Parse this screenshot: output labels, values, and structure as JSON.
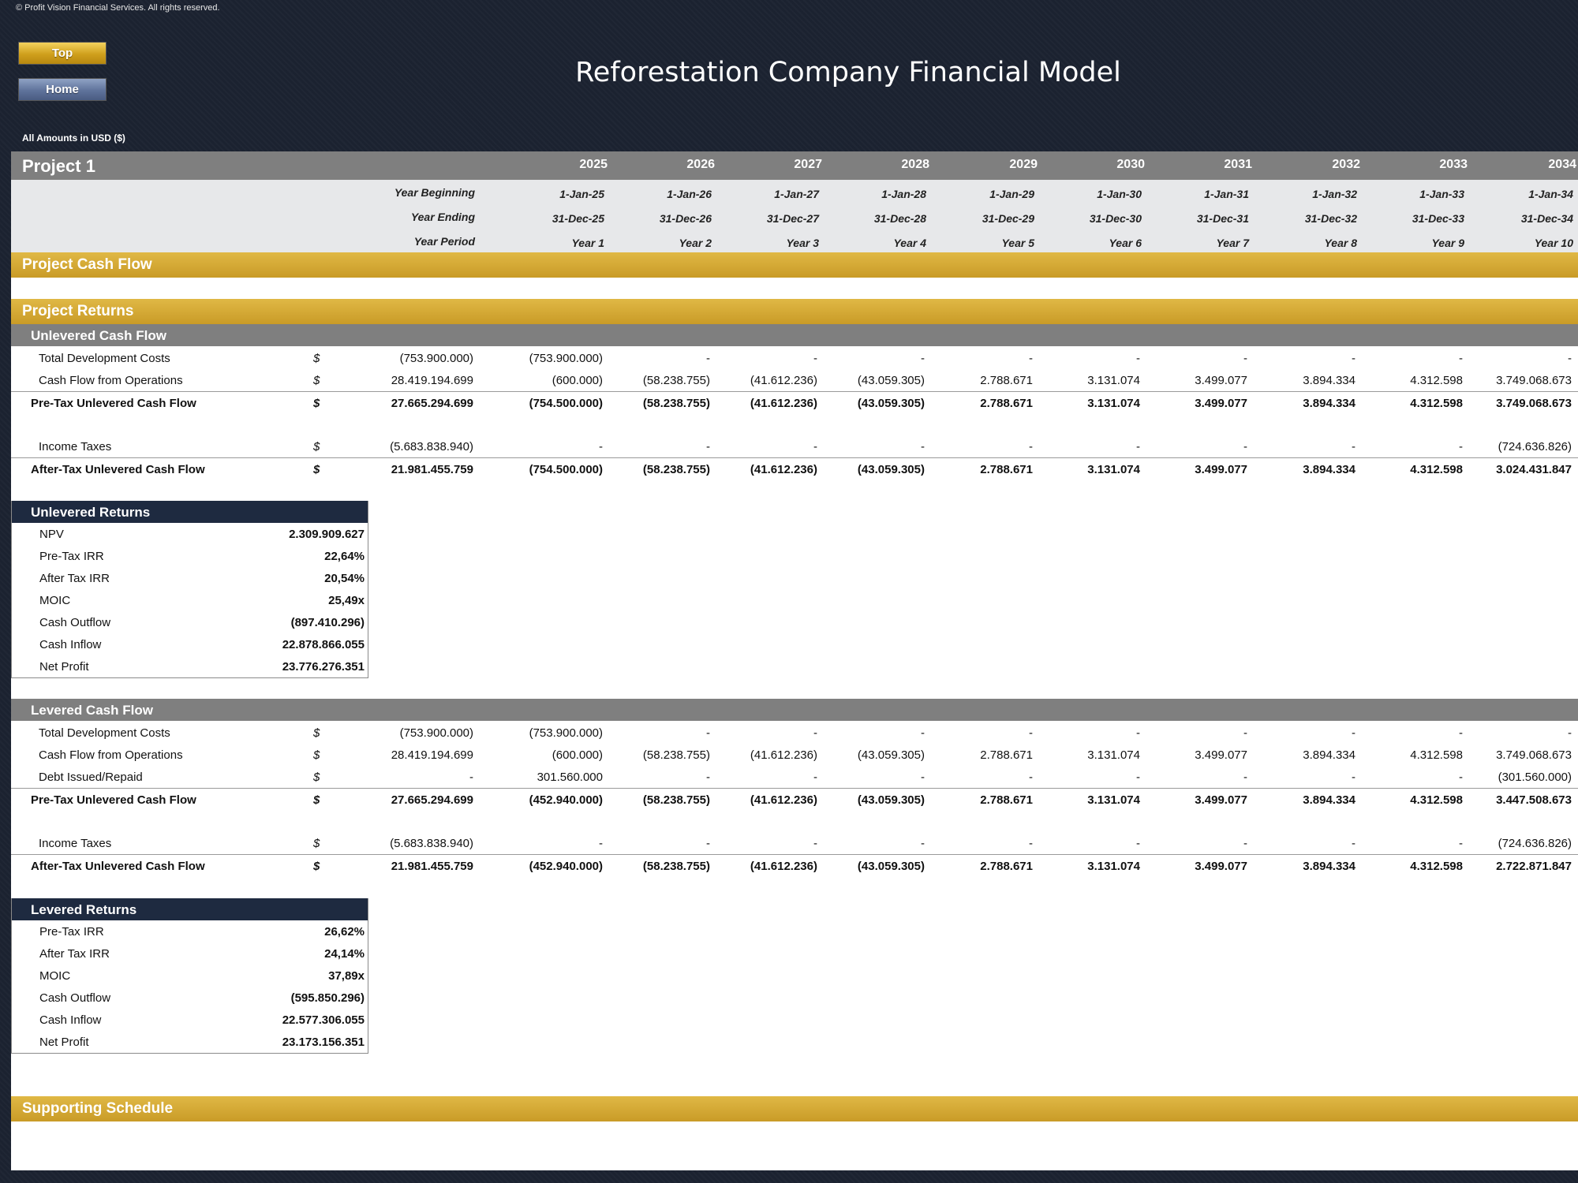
{
  "copyright": "© Profit Vision Financial Services. All rights reserved.",
  "nav": {
    "top_label": "Top",
    "home_label": "Home"
  },
  "title": "Reforestation Company Financial Model",
  "amounts_note": "All Amounts in  USD ($)",
  "project_name": "Project 1",
  "date_labels": {
    "beginning": "Year Beginning",
    "ending": "Year Ending",
    "period": "Year Period"
  },
  "years": [
    "2025",
    "2026",
    "2027",
    "2028",
    "2029",
    "2030",
    "2031",
    "2032",
    "2033",
    "2034"
  ],
  "year_beginning": [
    "1-Jan-25",
    "1-Jan-26",
    "1-Jan-27",
    "1-Jan-28",
    "1-Jan-29",
    "1-Jan-30",
    "1-Jan-31",
    "1-Jan-32",
    "1-Jan-33",
    "1-Jan-34"
  ],
  "year_ending": [
    "31-Dec-25",
    "31-Dec-26",
    "31-Dec-27",
    "31-Dec-28",
    "31-Dec-29",
    "31-Dec-30",
    "31-Dec-31",
    "31-Dec-32",
    "31-Dec-33",
    "31-Dec-34"
  ],
  "year_period": [
    "Year 1",
    "Year 2",
    "Year 3",
    "Year 4",
    "Year 5",
    "Year 6",
    "Year 7",
    "Year 8",
    "Year 9",
    "Year 10"
  ],
  "sections": {
    "project_cash_flow": "Project Cash Flow",
    "project_returns": "Project Returns",
    "unlevered_cash_flow": "Unlevered Cash Flow",
    "levered_cash_flow": "Levered Cash Flow",
    "supporting_schedule": "Supporting Schedule"
  },
  "currency_symbol": "$",
  "unlevered_rows": [
    {
      "label": "Total Development Costs",
      "total": "(753.900.000)",
      "values": [
        "(753.900.000)",
        "-",
        "-",
        "-",
        "-",
        "-",
        "-",
        "-",
        "-",
        "-"
      ]
    },
    {
      "label": "Cash Flow from Operations",
      "total": "28.419.194.699",
      "values": [
        "(600.000)",
        "(58.238.755)",
        "(41.612.236)",
        "(43.059.305)",
        "2.788.671",
        "3.131.074",
        "3.499.077",
        "3.894.334",
        "4.312.598",
        "3.749.068.673"
      ]
    },
    {
      "label": "Pre-Tax Unlevered Cash Flow",
      "total": "27.665.294.699",
      "values": [
        "(754.500.000)",
        "(58.238.755)",
        "(41.612.236)",
        "(43.059.305)",
        "2.788.671",
        "3.131.074",
        "3.499.077",
        "3.894.334",
        "4.312.598",
        "3.749.068.673"
      ]
    },
    {
      "label": "Income Taxes",
      "total": "(5.683.838.940)",
      "values": [
        "-",
        "-",
        "-",
        "-",
        "-",
        "-",
        "-",
        "-",
        "-",
        "(724.636.826)"
      ]
    },
    {
      "label": "After-Tax Unlevered Cash Flow",
      "total": "21.981.455.759",
      "values": [
        "(754.500.000)",
        "(58.238.755)",
        "(41.612.236)",
        "(43.059.305)",
        "2.788.671",
        "3.131.074",
        "3.499.077",
        "3.894.334",
        "4.312.598",
        "3.024.431.847"
      ]
    }
  ],
  "unlevered_returns": {
    "title": "Unlevered Returns",
    "items": [
      {
        "label": "NPV",
        "value": "2.309.909.627"
      },
      {
        "label": "Pre-Tax IRR",
        "value": "22,64%"
      },
      {
        "label": "After Tax IRR",
        "value": "20,54%"
      },
      {
        "label": "MOIC",
        "value": "25,49x"
      },
      {
        "label": "Cash Outflow",
        "value": "(897.410.296)"
      },
      {
        "label": "Cash Inflow",
        "value": "22.878.866.055"
      },
      {
        "label": "Net Profit",
        "value": "23.776.276.351"
      }
    ]
  },
  "levered_rows": [
    {
      "label": "Total Development Costs",
      "total": "(753.900.000)",
      "values": [
        "(753.900.000)",
        "-",
        "-",
        "-",
        "-",
        "-",
        "-",
        "-",
        "-",
        "-"
      ]
    },
    {
      "label": "Cash Flow from Operations",
      "total": "28.419.194.699",
      "values": [
        "(600.000)",
        "(58.238.755)",
        "(41.612.236)",
        "(43.059.305)",
        "2.788.671",
        "3.131.074",
        "3.499.077",
        "3.894.334",
        "4.312.598",
        "3.749.068.673"
      ]
    },
    {
      "label": "Debt Issued/Repaid",
      "total": "-",
      "values": [
        "301.560.000",
        "-",
        "-",
        "-",
        "-",
        "-",
        "-",
        "-",
        "-",
        "(301.560.000)"
      ]
    },
    {
      "label": "Pre-Tax Unlevered Cash Flow",
      "total": "27.665.294.699",
      "values": [
        "(452.940.000)",
        "(58.238.755)",
        "(41.612.236)",
        "(43.059.305)",
        "2.788.671",
        "3.131.074",
        "3.499.077",
        "3.894.334",
        "4.312.598",
        "3.447.508.673"
      ]
    },
    {
      "label": "Income Taxes",
      "total": "(5.683.838.940)",
      "values": [
        "-",
        "-",
        "-",
        "-",
        "-",
        "-",
        "-",
        "-",
        "-",
        "(724.636.826)"
      ]
    },
    {
      "label": "After-Tax Unlevered Cash Flow",
      "total": "21.981.455.759",
      "values": [
        "(452.940.000)",
        "(58.238.755)",
        "(41.612.236)",
        "(43.059.305)",
        "2.788.671",
        "3.131.074",
        "3.499.077",
        "3.894.334",
        "4.312.598",
        "2.722.871.847"
      ]
    }
  ],
  "levered_returns": {
    "title": "Levered Returns",
    "items": [
      {
        "label": "Pre-Tax IRR",
        "value": "26,62%"
      },
      {
        "label": "After Tax IRR",
        "value": "24,14%"
      },
      {
        "label": "MOIC",
        "value": "37,89x"
      },
      {
        "label": "Cash Outflow",
        "value": "(595.850.296)"
      },
      {
        "label": "Cash Inflow",
        "value": "22.577.306.055"
      },
      {
        "label": "Net Profit",
        "value": "23.173.156.351"
      }
    ]
  }
}
